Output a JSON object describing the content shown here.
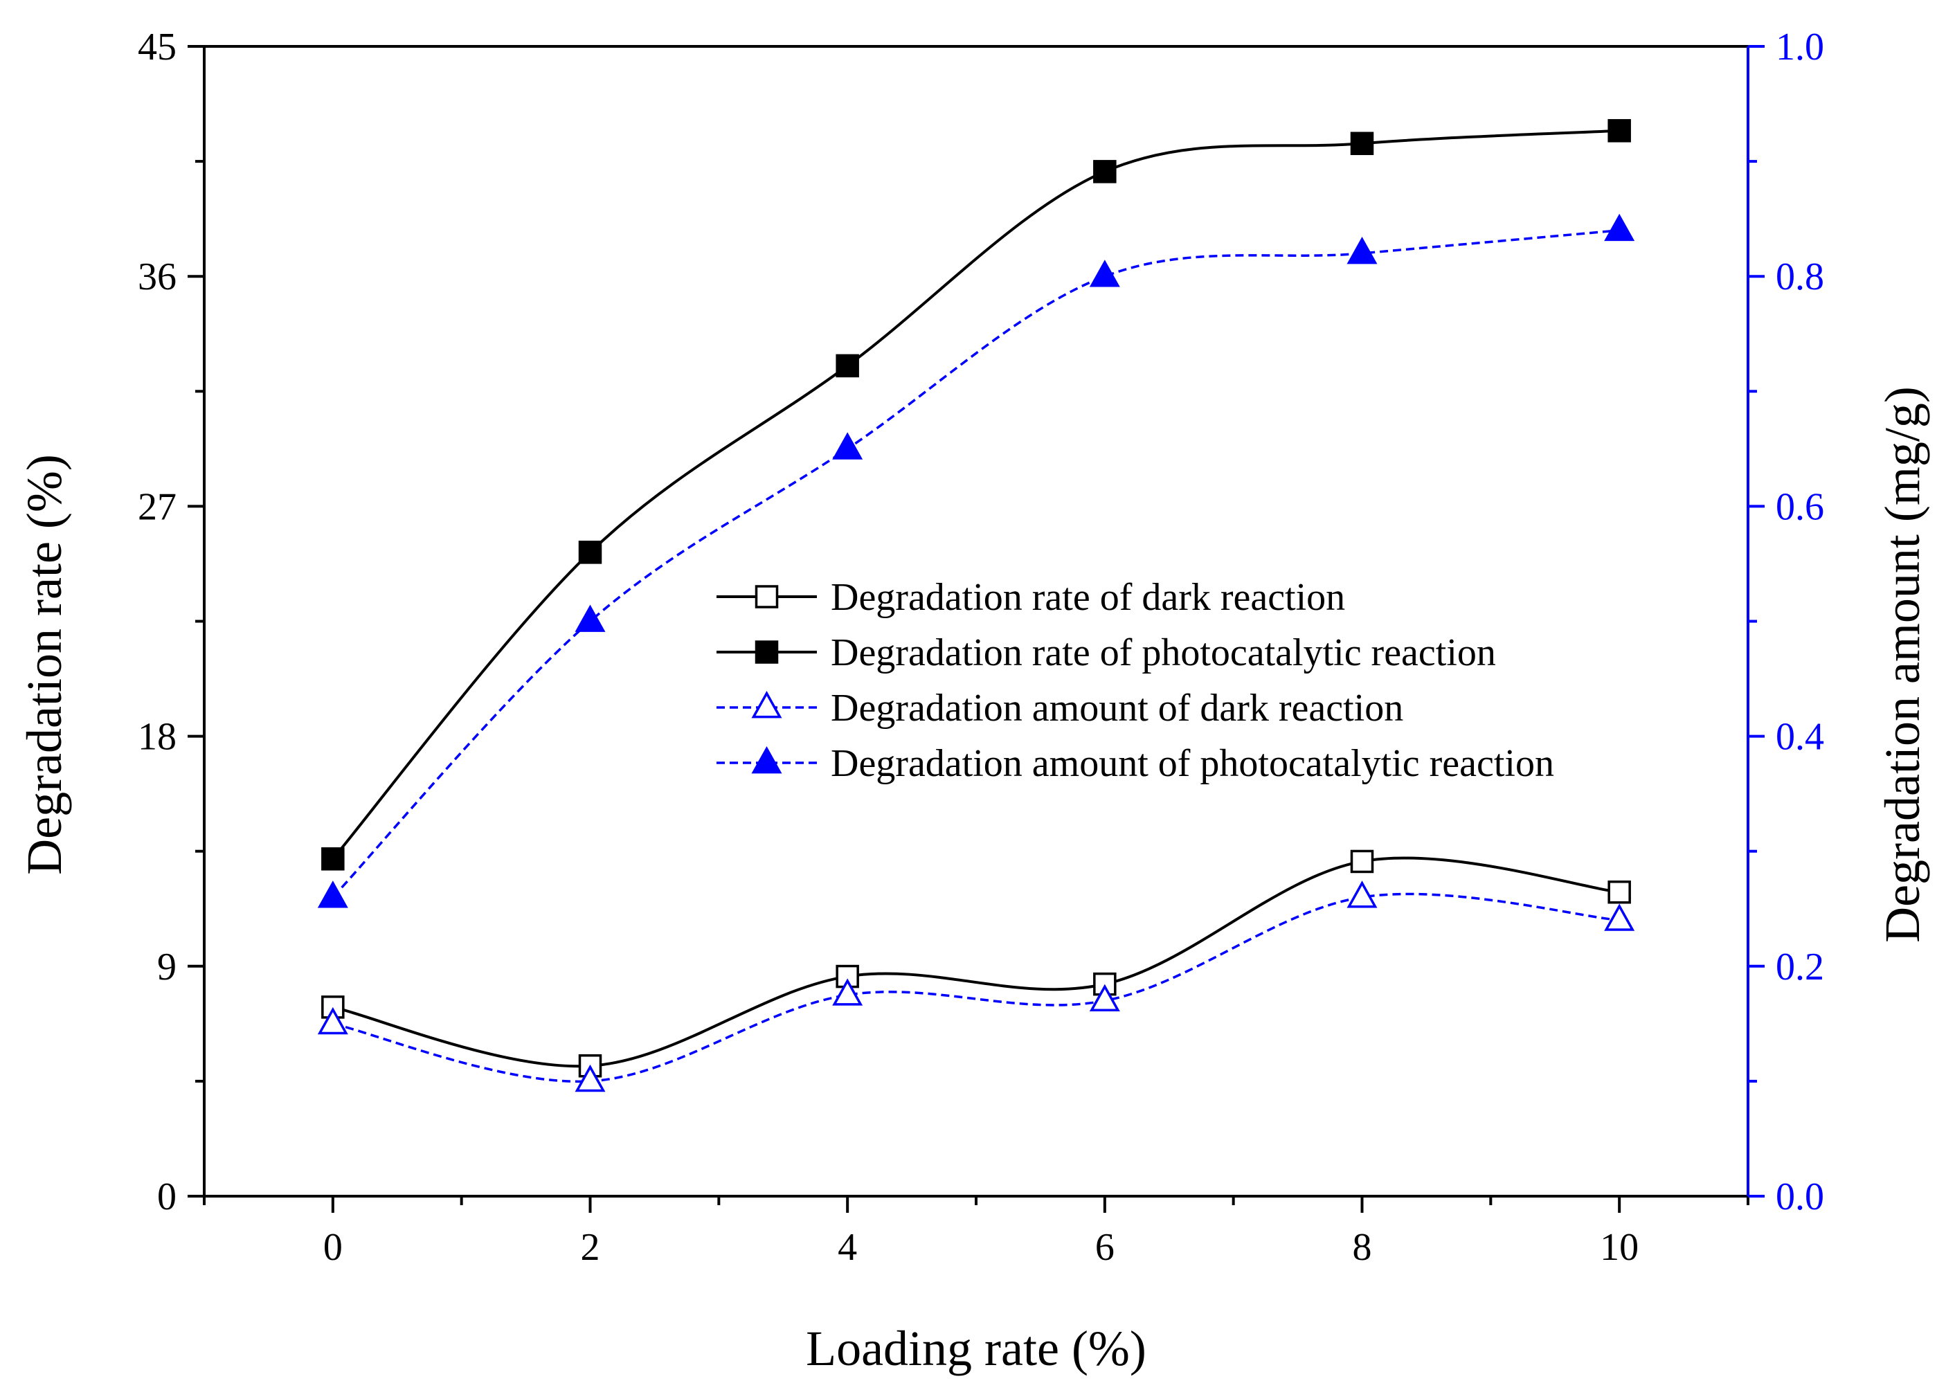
{
  "chart_data": {
    "type": "line",
    "xlabel": "Loading rate (%)",
    "ylabel_left": "Degradation rate (%)",
    "ylabel_right": "Degradation amount (mg/g)",
    "x": [
      0,
      2,
      4,
      6,
      8,
      10
    ],
    "xlim": [
      -1,
      11
    ],
    "x_ticks": [
      0,
      2,
      4,
      6,
      8,
      10
    ],
    "x_tick_labels": [
      "0",
      "2",
      "4",
      "6",
      "8",
      "10"
    ],
    "ylim_left": [
      0,
      45
    ],
    "y_ticks_left": [
      0,
      9,
      18,
      27,
      36,
      45
    ],
    "y_tick_labels_left": [
      "0",
      "9",
      "18",
      "27",
      "36",
      "45"
    ],
    "ylim_right": [
      0.0,
      1.0
    ],
    "y_ticks_right": [
      0.0,
      0.2,
      0.4,
      0.6,
      0.8,
      1.0
    ],
    "y_tick_labels_right": [
      "0.0",
      "0.2",
      "0.4",
      "0.6",
      "0.8",
      "1.0"
    ],
    "colors": {
      "black": "#000000",
      "blue": "#0000ff"
    },
    "series": [
      {
        "name": "Degradation rate of dark reaction",
        "axis": "left",
        "color": "#000000",
        "dashed": false,
        "marker": "square-open",
        "values": [
          7.4,
          5.1,
          8.6,
          8.3,
          13.1,
          11.9
        ]
      },
      {
        "name": "Degradation rate of photocatalytic reaction",
        "axis": "left",
        "color": "#000000",
        "dashed": false,
        "marker": "square-filled",
        "values": [
          13.2,
          25.2,
          32.5,
          40.1,
          41.2,
          41.7
        ]
      },
      {
        "name": "Degradation amount of dark reaction",
        "axis": "right",
        "color": "#0000ff",
        "dashed": true,
        "marker": "triangle-open",
        "values": [
          0.15,
          0.1,
          0.175,
          0.17,
          0.26,
          0.24
        ]
      },
      {
        "name": "Degradation amount of photocatalytic reaction",
        "axis": "right",
        "color": "#0000ff",
        "dashed": true,
        "marker": "triangle-filled",
        "values": [
          0.26,
          0.5,
          0.65,
          0.8,
          0.82,
          0.84
        ]
      }
    ],
    "legend_position": "center-right"
  }
}
